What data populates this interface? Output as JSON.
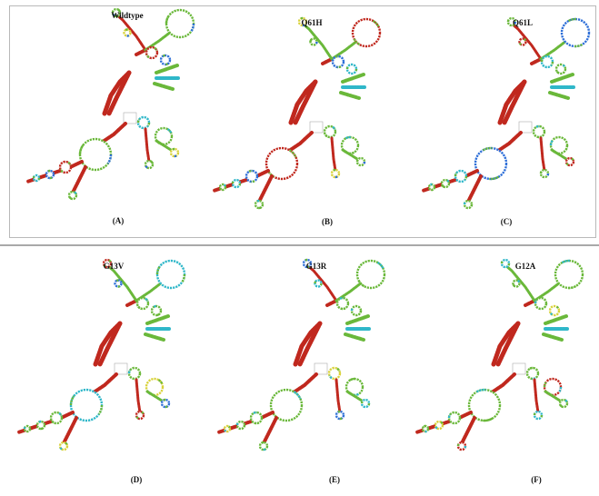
{
  "panels": [
    {
      "title": "Wildtype",
      "caption": "(A)"
    },
    {
      "title": "Q61H",
      "caption": "(B)"
    },
    {
      "title": "Q61L",
      "caption": "(C)"
    },
    {
      "title": "G13V",
      "caption": "(D)"
    },
    {
      "title": "G13R",
      "caption": "(E)"
    },
    {
      "title": "G12A",
      "caption": "(F)"
    }
  ],
  "colors": {
    "paired": "#c0281e",
    "loop_green": "#6ab83a",
    "loop_yellow": "#d9d23a",
    "loop_blue": "#2e6fd8",
    "loop_cyan": "#2fb7c9",
    "frame": "#b9b9b9"
  }
}
